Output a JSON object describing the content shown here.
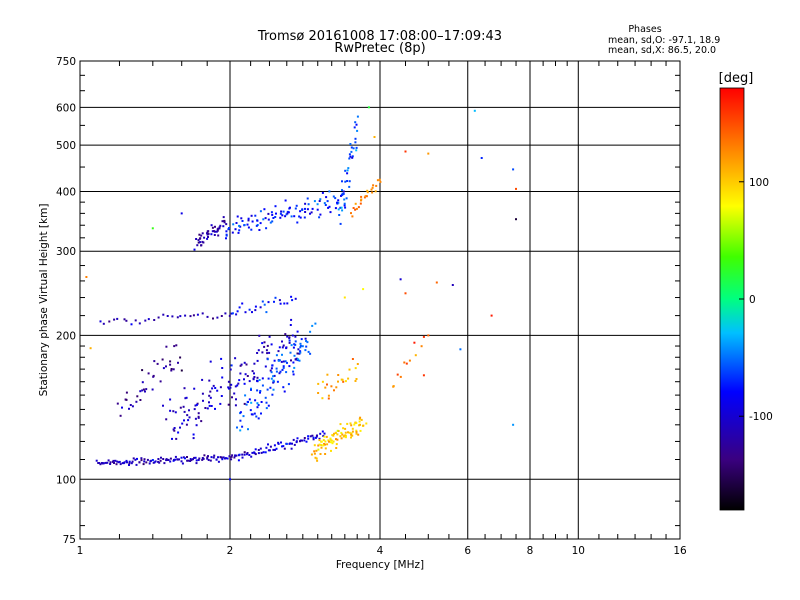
{
  "chart_data": {
    "type": "scatter",
    "title": "Tromsø 20161008 17:08:00–17:09:43",
    "subtitle": "RwPretec (8p)",
    "xlabel": "Frequency [MHz]",
    "ylabel": "Stationary phase Virtual Height [km]",
    "x_scale": "log",
    "y_scale": "log",
    "xlim": [
      1,
      16
    ],
    "ylim": [
      75,
      750
    ],
    "x_ticks": [
      1,
      2,
      4,
      6,
      8,
      10,
      16
    ],
    "x_tick_labels": [
      "1",
      "2",
      "4",
      "6",
      "8",
      "10",
      "16"
    ],
    "y_ticks": [
      75,
      100,
      200,
      300,
      400,
      500,
      600,
      750
    ],
    "y_tick_labels": [
      "75",
      "100",
      "200",
      "300",
      "400",
      "500",
      "600",
      "750"
    ],
    "x_minor_ticks": [
      1.2,
      1.4,
      1.6,
      1.8,
      2.2,
      2.4,
      2.6,
      2.8,
      3,
      3.2,
      3.4,
      3.6,
      3.8,
      4.5,
      5,
      5.5,
      6.5,
      7,
      7.5,
      8.5,
      9,
      9.5,
      11,
      12,
      13,
      14,
      15
    ],
    "y_minor_ticks": [
      80,
      90,
      110,
      120,
      130,
      140,
      150,
      160,
      170,
      180,
      190,
      220,
      240,
      260,
      280,
      320,
      340,
      360,
      380,
      450,
      550,
      650,
      700
    ],
    "grid": true,
    "phase_info": {
      "title": "Phases",
      "line_o": "mean, sd,O: -97.1, 18.9",
      "line_x": "mean, sd,X:  86.5, 20.0"
    },
    "colorbar": {
      "label": "[deg]",
      "range": [
        -180,
        180
      ],
      "ticks": [
        -100,
        0,
        100
      ],
      "tick_labels": [
        "-100",
        "0",
        "100"
      ]
    },
    "traces": [
      {
        "f_start": 1.08,
        "f_end": 2.05,
        "h_start": 108,
        "h_end": 111,
        "phase": -110,
        "count": 120,
        "scatter": 0.015
      },
      {
        "f_start": 2.05,
        "f_end": 3.1,
        "h_start": 111,
        "h_end": 124,
        "phase": -100,
        "count": 70,
        "scatter": 0.02
      },
      {
        "f_start": 2.95,
        "f_end": 3.7,
        "h_start": 114,
        "h_end": 130,
        "phase": 100,
        "count": 90,
        "scatter": 0.045
      },
      {
        "f_start": 3.0,
        "f_end": 3.6,
        "h_start": 150,
        "h_end": 170,
        "phase": 110,
        "count": 25,
        "scatter": 0.06
      },
      {
        "f_start": 1.7,
        "f_end": 1.95,
        "h_start": 310,
        "h_end": 345,
        "phase": -120,
        "count": 45,
        "scatter": 0.04
      },
      {
        "f_start": 1.95,
        "f_end": 3.4,
        "h_start": 330,
        "h_end": 390,
        "phase": -75,
        "count": 110,
        "scatter": 0.05
      },
      {
        "f_start": 3.3,
        "f_end": 3.6,
        "h_start": 360,
        "h_end": 560,
        "phase": -55,
        "count": 40,
        "scatter": 0.06
      },
      {
        "f_start": 3.5,
        "f_end": 4.0,
        "h_start": 360,
        "h_end": 420,
        "phase": 130,
        "count": 25,
        "scatter": 0.03
      },
      {
        "f_start": 1.1,
        "f_end": 2.0,
        "h_start": 212,
        "h_end": 222,
        "phase": -115,
        "count": 30,
        "scatter": 0.02
      },
      {
        "f_start": 2.0,
        "f_end": 2.7,
        "h_start": 222,
        "h_end": 240,
        "phase": -80,
        "count": 25,
        "scatter": 0.03
      },
      {
        "f_start": 1.5,
        "f_end": 2.8,
        "h_start": 130,
        "h_end": 200,
        "phase": -105,
        "count": 150,
        "scatter": 0.12
      },
      {
        "f_start": 2.1,
        "f_end": 2.9,
        "h_start": 135,
        "h_end": 195,
        "phase": -60,
        "count": 100,
        "scatter": 0.1
      },
      {
        "f_start": 1.2,
        "f_end": 1.6,
        "h_start": 140,
        "h_end": 180,
        "phase": -125,
        "count": 40,
        "scatter": 0.08
      },
      {
        "f_start": 4.2,
        "f_end": 5.0,
        "h_start": 160,
        "h_end": 195,
        "phase": 140,
        "count": 12,
        "scatter": 0.05
      }
    ],
    "isolated_points": [
      {
        "f": 6.2,
        "h": 590,
        "phase": -30
      },
      {
        "f": 6.4,
        "h": 470,
        "phase": -70
      },
      {
        "f": 7.4,
        "h": 445,
        "phase": -60
      },
      {
        "f": 7.5,
        "h": 405,
        "phase": 150
      },
      {
        "f": 7.5,
        "h": 350,
        "phase": -160
      },
      {
        "f": 7.4,
        "h": 130,
        "phase": -40
      },
      {
        "f": 4.5,
        "h": 485,
        "phase": 160
      },
      {
        "f": 5.0,
        "h": 480,
        "phase": 120
      },
      {
        "f": 4.4,
        "h": 262,
        "phase": -100
      },
      {
        "f": 4.5,
        "h": 245,
        "phase": 150
      },
      {
        "f": 5.2,
        "h": 258,
        "phase": 140
      },
      {
        "f": 5.6,
        "h": 255,
        "phase": -110
      },
      {
        "f": 6.7,
        "h": 220,
        "phase": 170
      },
      {
        "f": 5.8,
        "h": 187,
        "phase": -50
      },
      {
        "f": 4.9,
        "h": 165,
        "phase": 160
      },
      {
        "f": 1.03,
        "h": 265,
        "phase": 130
      },
      {
        "f": 1.05,
        "h": 188,
        "phase": 110
      },
      {
        "f": 1.4,
        "h": 335,
        "phase": 30
      },
      {
        "f": 1.6,
        "h": 360,
        "phase": -90
      },
      {
        "f": 3.8,
        "h": 600,
        "phase": 20
      },
      {
        "f": 3.9,
        "h": 520,
        "phase": 110
      },
      {
        "f": 2.0,
        "h": 100,
        "phase": -80
      },
      {
        "f": 3.4,
        "h": 240,
        "phase": 90
      },
      {
        "f": 3.7,
        "h": 250,
        "phase": 80
      }
    ]
  }
}
